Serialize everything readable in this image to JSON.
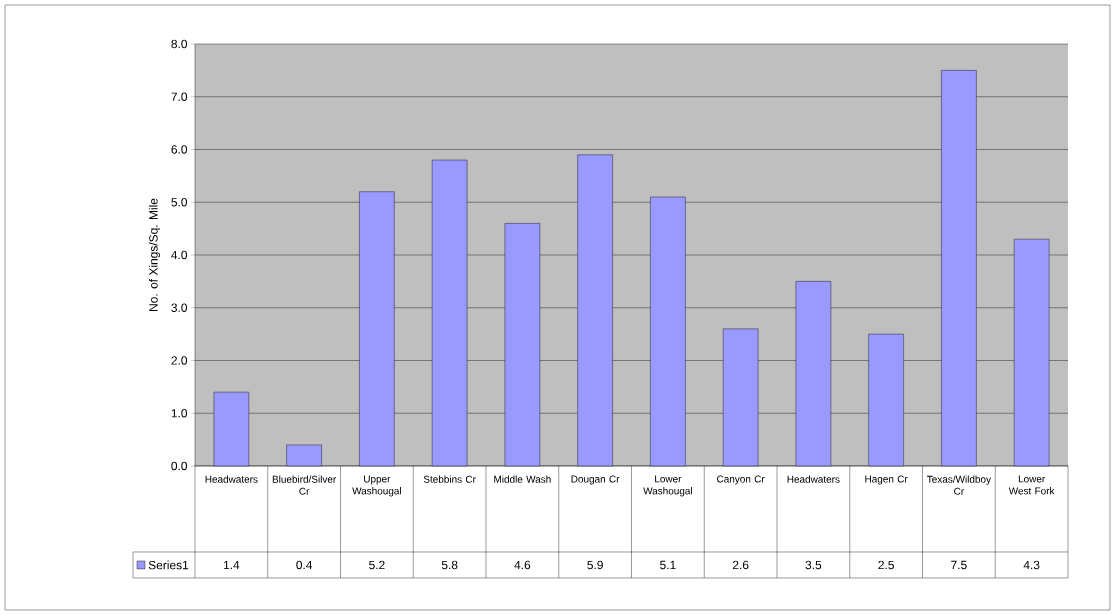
{
  "chart_data": {
    "type": "bar",
    "ylabel": "No. of Xings/Sq. Mile",
    "categories": [
      "Headwaters",
      "Bluebird/Silver Cr",
      "Upper Washougal",
      "Stebbins Cr",
      "Middle Wash",
      "Dougan Cr",
      "Lower Washougal",
      "Canyon Cr",
      "Headwaters",
      "Hagen Cr",
      "Texas/Wildboy Cr",
      "Lower West Fork"
    ],
    "series": [
      {
        "name": "Series1",
        "color": "#9999ff",
        "values": [
          1.4,
          0.4,
          5.2,
          5.8,
          4.6,
          5.9,
          5.1,
          2.6,
          3.5,
          2.5,
          7.5,
          4.3
        ]
      }
    ],
    "ylim": [
      0,
      8
    ],
    "yticks": [
      {
        "value": 0,
        "label": "0.0"
      },
      {
        "value": 1,
        "label": "1.0"
      },
      {
        "value": 2,
        "label": "2.0"
      },
      {
        "value": 3,
        "label": "3.0"
      },
      {
        "value": 4,
        "label": "4.0"
      },
      {
        "value": 5,
        "label": "5.0"
      },
      {
        "value": 6,
        "label": "6.0"
      },
      {
        "value": 7,
        "label": "7.0"
      },
      {
        "value": 8,
        "label": "8.0"
      }
    ],
    "grid": "y",
    "legend": "bottom left",
    "data_labels": true
  }
}
